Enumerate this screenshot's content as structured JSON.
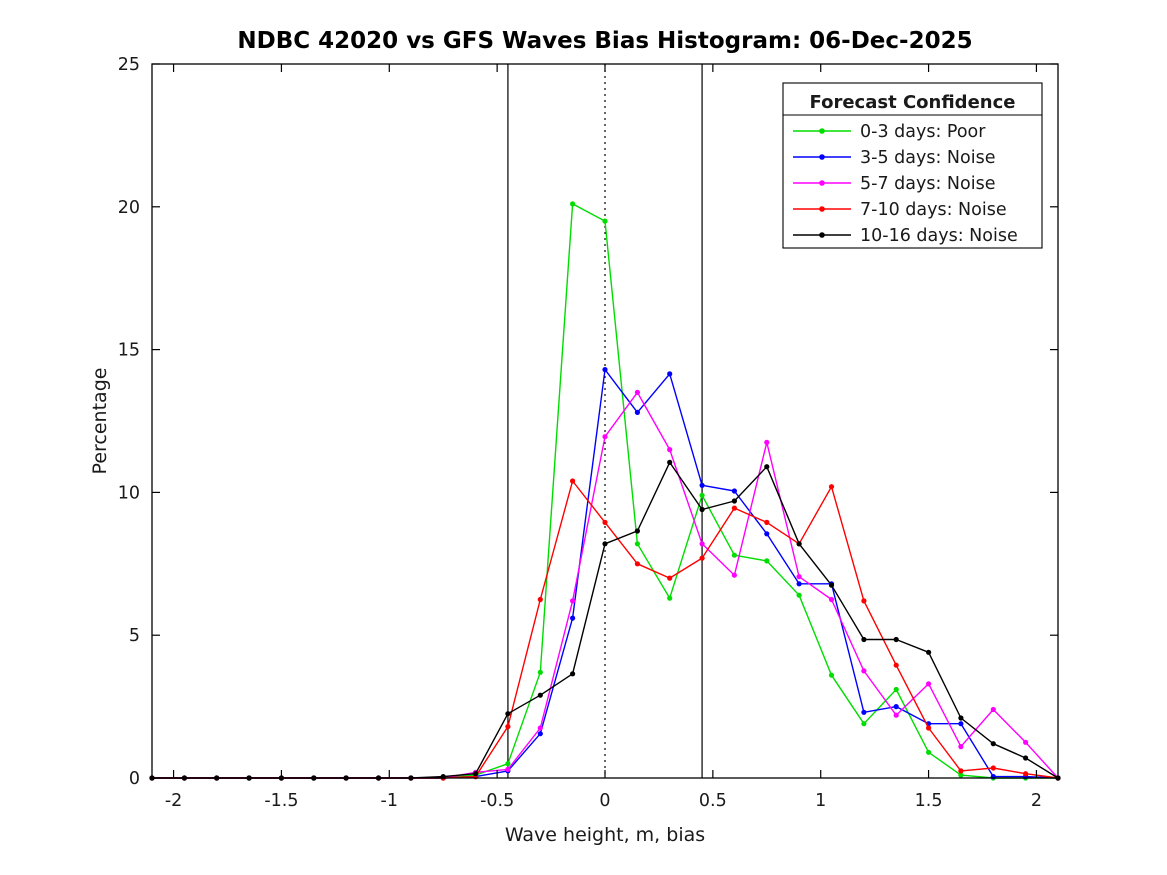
{
  "chart_data": {
    "type": "line",
    "title": "NDBC 42020 vs GFS Waves Bias Histogram: 06-Dec-2025",
    "xlabel": "Wave height, m, bias",
    "ylabel": "Percentage",
    "xlim": [
      -2.1,
      2.1
    ],
    "ylim": [
      0,
      25
    ],
    "grid": false,
    "x_ticks": [
      -2,
      -1.5,
      -1,
      -0.5,
      0,
      0.5,
      1,
      1.5,
      2
    ],
    "x_tick_labels": [
      "-2",
      "-1.5",
      "-1",
      "-0.5",
      "0",
      "0.5",
      "1",
      "1.5",
      "2"
    ],
    "y_ticks": [
      0,
      5,
      10,
      15,
      20,
      25
    ],
    "y_tick_labels": [
      "0",
      "5",
      "10",
      "15",
      "20",
      "25"
    ],
    "legend_title": "Forecast Confidence",
    "legend_position": "top-right",
    "x": [
      -2.1,
      -1.95,
      -1.8,
      -1.65,
      -1.5,
      -1.35,
      -1.2,
      -1.05,
      -0.9,
      -0.75,
      -0.6,
      -0.45,
      -0.3,
      -0.15,
      0,
      0.15,
      0.3,
      0.45,
      0.6,
      0.75,
      0.9,
      1.05,
      1.2,
      1.35,
      1.5,
      1.65,
      1.8,
      1.95,
      2.1
    ],
    "series": [
      {
        "name": "0-3 days: Poor",
        "color": "#00dd00",
        "marker": "circle",
        "values": [
          0,
          0,
          0,
          0,
          0,
          0,
          0,
          0,
          0,
          0,
          0.1,
          0.5,
          3.7,
          20.1,
          19.5,
          8.2,
          6.3,
          9.9,
          7.8,
          7.6,
          6.4,
          3.6,
          1.9,
          3.1,
          0.9,
          0.1,
          0,
          0,
          0
        ]
      },
      {
        "name": "3-5 days: Noise",
        "color": "#0000ff",
        "marker": "circle",
        "values": [
          0,
          0,
          0,
          0,
          0,
          0,
          0,
          0,
          0,
          0,
          0.05,
          0.25,
          1.55,
          5.6,
          14.3,
          12.8,
          14.15,
          10.25,
          10.05,
          8.55,
          6.8,
          6.8,
          2.3,
          2.5,
          1.9,
          1.9,
          0.05,
          0.05,
          0
        ]
      },
      {
        "name": "5-7 days: Noise",
        "color": "#ff00ff",
        "marker": "circle",
        "values": [
          0,
          0,
          0,
          0,
          0,
          0,
          0,
          0,
          0,
          0,
          0.2,
          0.3,
          1.75,
          6.2,
          11.95,
          13.5,
          11.5,
          8.2,
          7.1,
          11.75,
          7.05,
          6.25,
          3.75,
          2.2,
          3.3,
          1.1,
          2.4,
          1.25,
          0
        ]
      },
      {
        "name": "7-10 days: Noise",
        "color": "#ff0000",
        "marker": "circle",
        "values": [
          0,
          0,
          0,
          0,
          0,
          0,
          0,
          0,
          0,
          0,
          0.05,
          1.8,
          6.25,
          10.4,
          8.95,
          7.5,
          7.0,
          7.7,
          9.45,
          8.95,
          8.2,
          10.2,
          6.2,
          3.95,
          1.75,
          0.25,
          0.35,
          0.15,
          0
        ]
      },
      {
        "name": "10-16 days: Noise",
        "color": "#000000",
        "marker": "circle",
        "values": [
          0,
          0,
          0,
          0,
          0,
          0,
          0,
          0,
          0,
          0.05,
          0.15,
          2.25,
          2.9,
          3.65,
          8.2,
          8.65,
          11.05,
          9.4,
          9.7,
          10.9,
          8.2,
          6.75,
          4.85,
          4.85,
          4.4,
          2.1,
          1.2,
          0.7,
          0
        ]
      }
    ],
    "reference_lines": [
      {
        "name": "lower-threshold-line",
        "x": -0.45,
        "style": "solid",
        "color": "#000000"
      },
      {
        "name": "zero-bias-line",
        "x": 0,
        "style": "dotted",
        "color": "#000000"
      },
      {
        "name": "upper-threshold-line",
        "x": 0.45,
        "style": "solid",
        "color": "#000000"
      }
    ]
  }
}
